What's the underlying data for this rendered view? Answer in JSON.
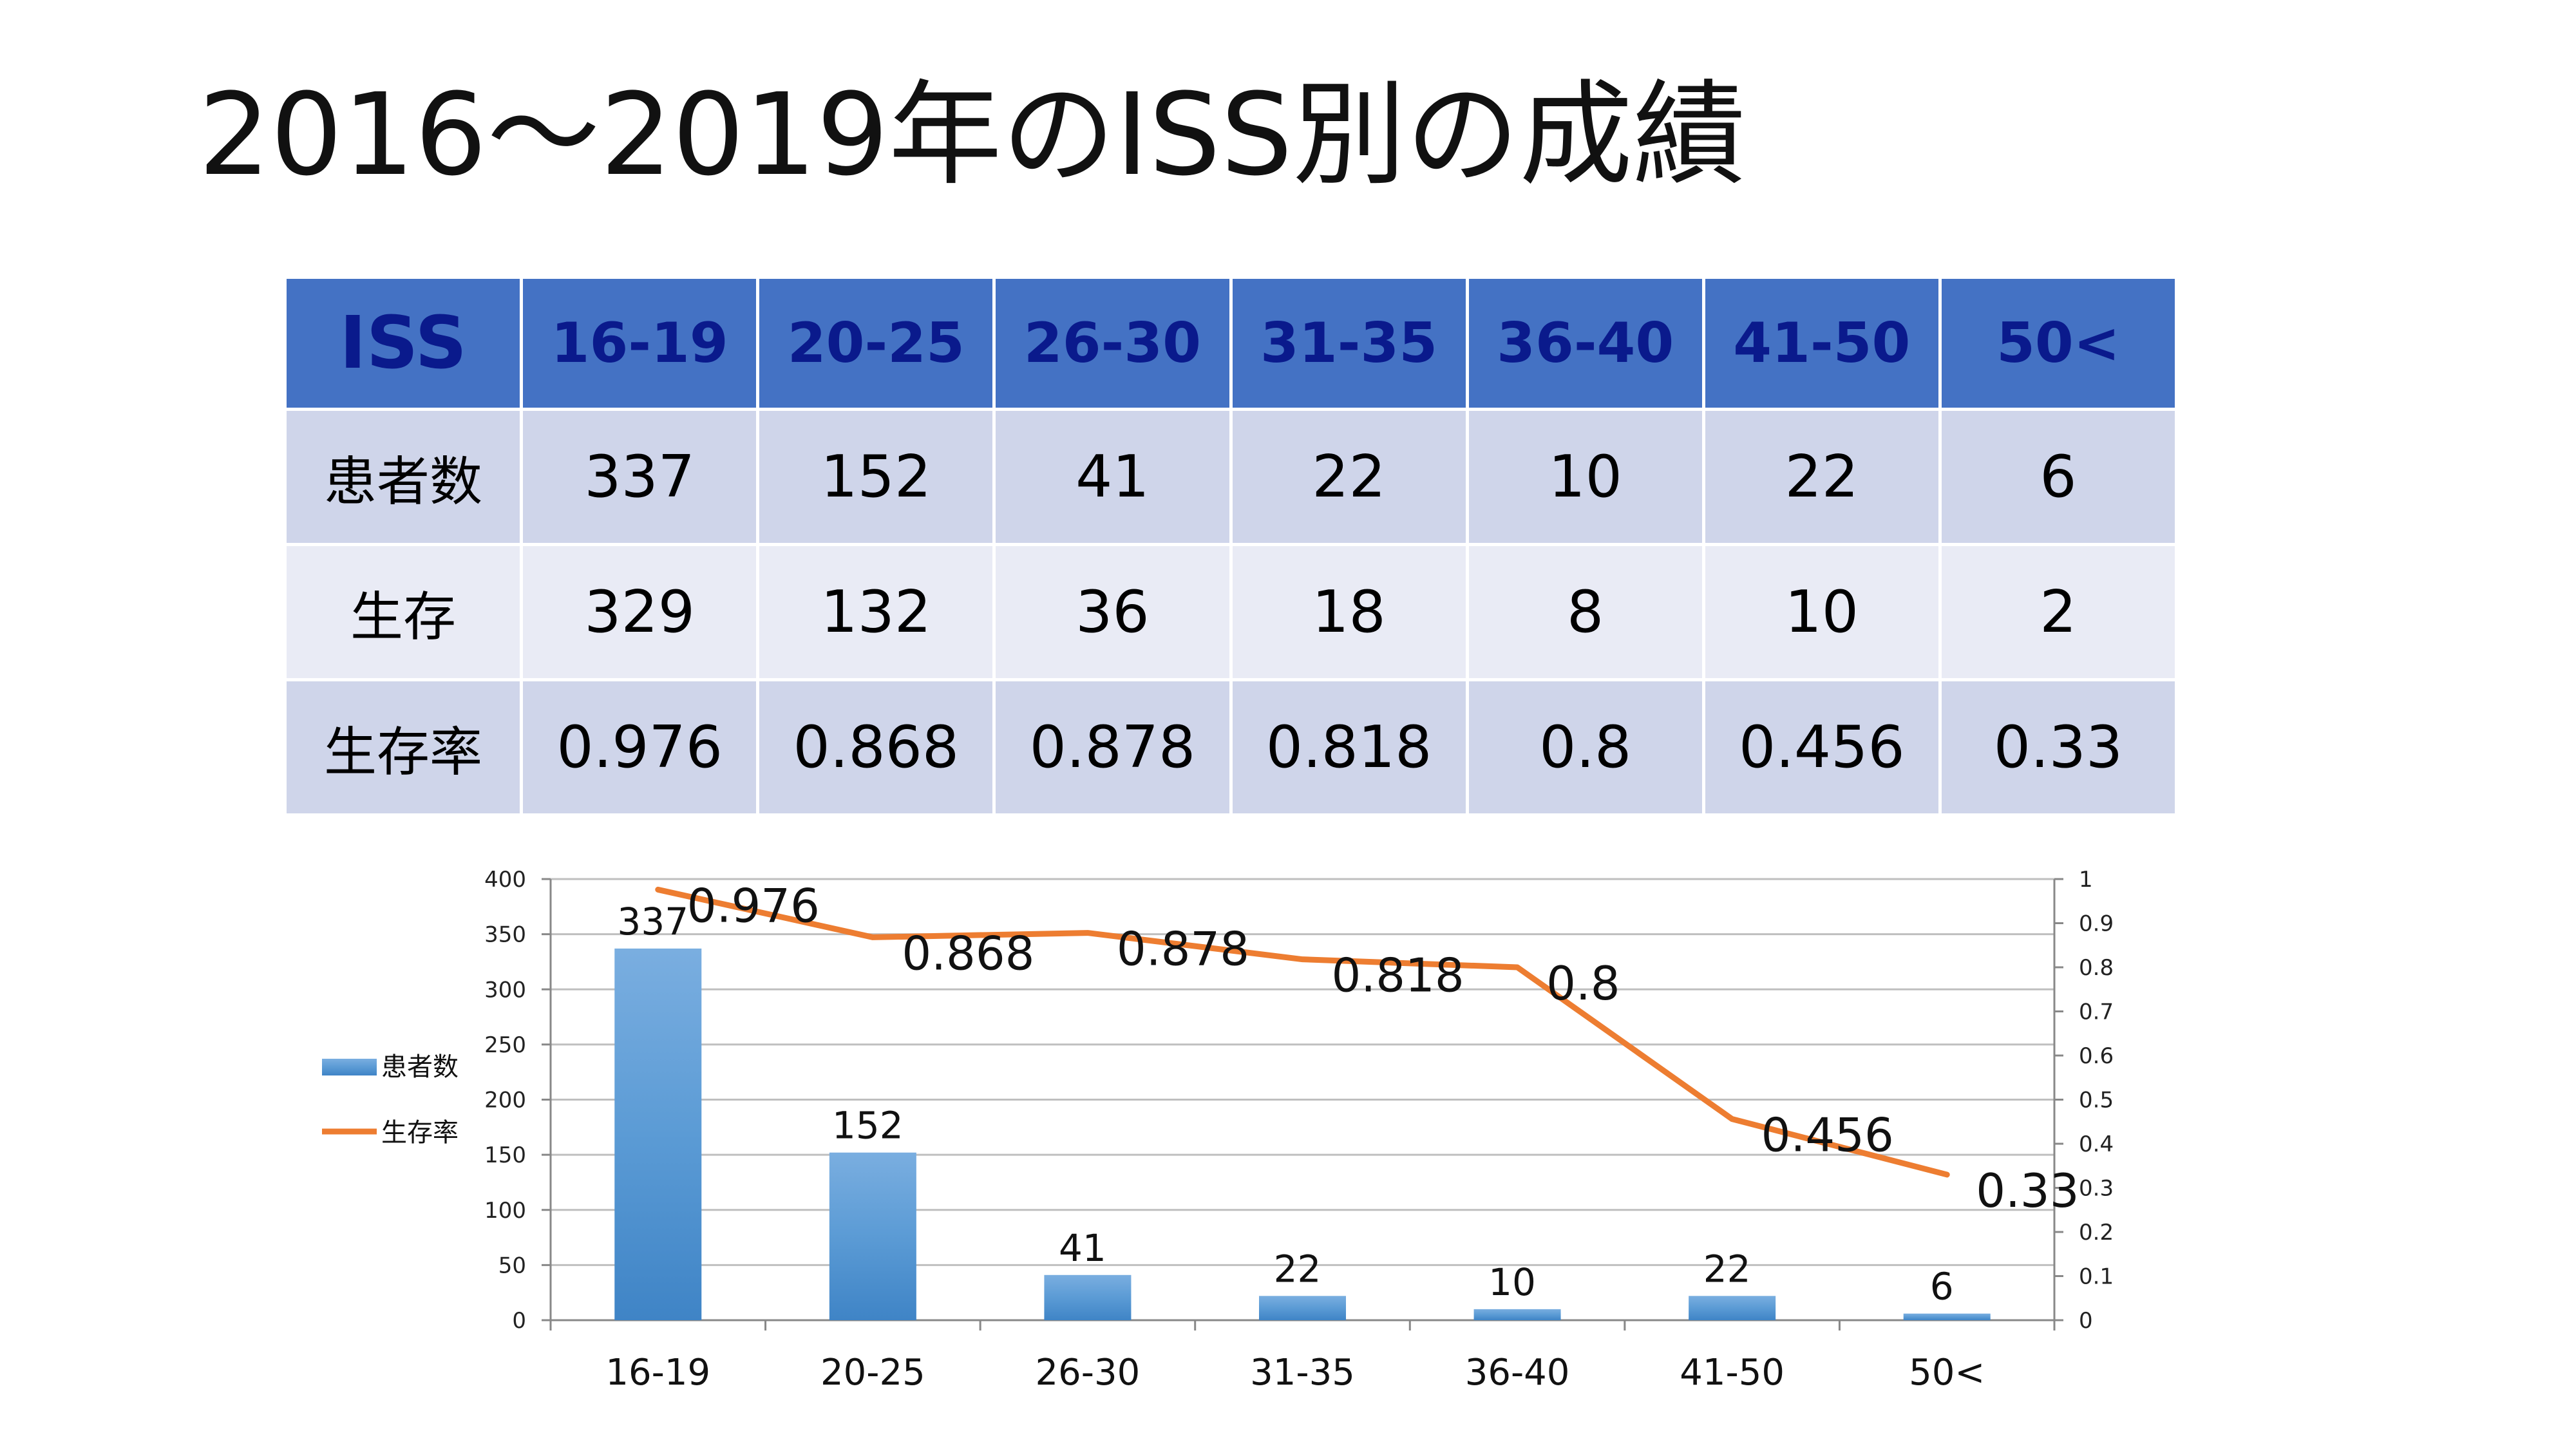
{
  "title": "2016～2019年のISS別の成績",
  "table": {
    "header": [
      "ISS",
      "16-19",
      "20-25",
      "26-30",
      "31-35",
      "36-40",
      "41-50",
      "50<"
    ],
    "rows": [
      [
        "患者数",
        "337",
        "152",
        "41",
        "22",
        "10",
        "22",
        "6"
      ],
      [
        "生存",
        "329",
        "132",
        "36",
        "18",
        "8",
        "10",
        "2"
      ],
      [
        "生存率",
        "0.976",
        "0.868",
        "0.878",
        "0.818",
        "0.8",
        "0.456",
        "0.33"
      ]
    ]
  },
  "chart_data": {
    "type": "bar",
    "categories": [
      "16-19",
      "20-25",
      "26-30",
      "31-35",
      "36-40",
      "41-50",
      "50<"
    ],
    "series": [
      {
        "name": "患者数",
        "type": "bar",
        "axis": "left",
        "values": [
          337,
          152,
          41,
          22,
          10,
          22,
          6
        ],
        "color": "#5b9bd5"
      },
      {
        "name": "生存率",
        "type": "line",
        "axis": "right",
        "values": [
          0.976,
          0.868,
          0.878,
          0.818,
          0.8,
          0.456,
          0.33
        ],
        "color": "#ed7d31"
      }
    ],
    "y_left": {
      "min": 0,
      "max": 400,
      "ticks": [
        "0",
        "50",
        "100",
        "150",
        "200",
        "250",
        "300",
        "350",
        "400"
      ]
    },
    "y_right": {
      "min": 0,
      "max": 1,
      "ticks": [
        "0",
        "0.1",
        "0.2",
        "0.3",
        "0.4",
        "0.5",
        "0.6",
        "0.7",
        "0.8",
        "0.9",
        "1"
      ]
    },
    "grid": true,
    "legend": "left"
  }
}
